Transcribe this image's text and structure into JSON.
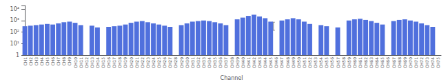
{
  "chart_data": {
    "type": "bar",
    "xlabel": "Channel",
    "categories": [
      "CH1",
      "CH2",
      "CH3",
      "CH4",
      "CH5",
      "CH6",
      "CH7",
      "CH8",
      "CH9",
      "CH10",
      "CH11",
      "CH12",
      "CH13",
      "CH14",
      "CH15",
      "CH16",
      "CH17",
      "CH18",
      "CH19",
      "CH20",
      "CH21",
      "CH22",
      "CH23",
      "CH24",
      "CH25",
      "CH26",
      "CH27",
      "CH28",
      "CH29",
      "CH30",
      "CH31",
      "CH32",
      "CH33",
      "CH34",
      "CH35",
      "CH36",
      "CH37",
      "CH38",
      "CH39",
      "CH40",
      "CH41",
      "CH42",
      "CH43",
      "CH44",
      "CH45",
      "CH46",
      "CH47",
      "CH48",
      "CH49",
      "CH50",
      "CH51",
      "CH52",
      "CH53",
      "CH54",
      "CH55",
      "CH56",
      "CH57",
      "CH58",
      "CH59",
      "CH60",
      "CH61",
      "CH62",
      "CH63",
      "CH64",
      "CH65",
      "CH66",
      "CH67",
      "CH68",
      "CH69",
      "CH70",
      "CH71",
      "CH72",
      "CH73",
      "CH74",
      "CH75"
    ],
    "values": [
      316.22777,
      354.81339,
      398.10717,
      446.68359,
      501.18723,
      446.68359,
      562.34133,
      707.94578,
      794.32823,
      630.95734,
      398.10717,
      null,
      354.81339,
      251.18864,
      null,
      281.83829,
      316.22777,
      354.81339,
      446.68359,
      630.95734,
      794.32823,
      891.25094,
      707.94578,
      562.34133,
      446.68359,
      354.81339,
      281.83829,
      null,
      398.10717,
      562.34133,
      794.32823,
      891.25094,
      1000,
      891.25094,
      707.94578,
      562.34133,
      398.10717,
      null,
      1258.92541,
      1778.27941,
      2511.88643,
      3162.27766,
      2238.72114,
      1584.89319,
      794.32823,
      null,
      1000,
      1258.92541,
      1584.89319,
      1258.92541,
      794.32823,
      501.18723,
      null,
      398.10717,
      316.22777,
      null,
      251.18864,
      null,
      1000,
      1258.92541,
      1412.53754,
      1122.01845,
      891.25094,
      630.95734,
      446.68359,
      null,
      891.25094,
      1122.01845,
      1258.92541,
      1000,
      794.32823,
      562.34133,
      398.10717,
      281.83829,
      null
    ],
    "log": "y",
    "ylim": [
      1,
      19952.62315
    ],
    "yticks": [
      1,
      {
        "value": 10,
        "label": "10¹"
      },
      {
        "value": 100,
        "label": "10²"
      },
      {
        "value": 1000,
        "label": "10³"
      },
      {
        "value": 10000,
        "label": "10⁴"
      }
    ],
    "grid": false,
    "error_bar": {
      "x": 44.5,
      "low": 141.25375,
      "high": 707.94578,
      "color": "#888888"
    }
  }
}
